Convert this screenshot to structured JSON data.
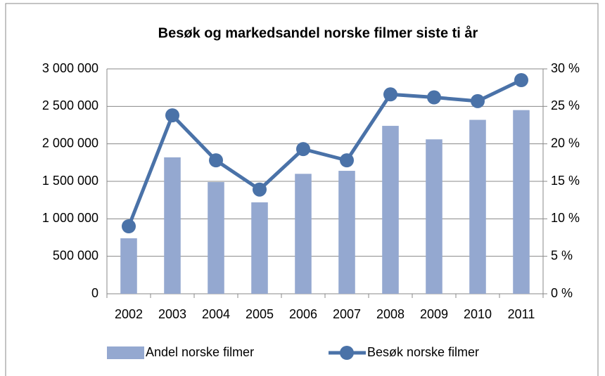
{
  "chart_data": {
    "type": "bar_line",
    "title": "Besøk og markedsandel norske filmer siste ti år",
    "categories": [
      "2002",
      "2003",
      "2004",
      "2005",
      "2006",
      "2007",
      "2008",
      "2009",
      "2010",
      "2011"
    ],
    "series": [
      {
        "name": "Andel norske filmer",
        "type": "bar",
        "axis": "y2",
        "color": "#94a8d0",
        "values": [
          7.4,
          18.2,
          14.9,
          12.2,
          16.0,
          16.4,
          22.4,
          20.6,
          23.2,
          24.5
        ]
      },
      {
        "name": "Besøk norske filmer",
        "type": "line",
        "axis": "y",
        "color": "#4a72a8",
        "values": [
          900000,
          2380000,
          1780000,
          1390000,
          1930000,
          1780000,
          2660000,
          2620000,
          2570000,
          2850000
        ]
      }
    ],
    "ylim": [
      0,
      3000000
    ],
    "yticks": [
      0,
      {
        "value": 500000,
        "label": "500 000"
      },
      {
        "value": 1000000,
        "label": "1 000 000"
      },
      {
        "value": 1500000,
        "label": "1 500 000"
      },
      {
        "value": 2000000,
        "label": "2 000 000"
      },
      {
        "value": 2500000,
        "label": "2 500 000"
      },
      {
        "value": 3000000,
        "label": "3 000 000"
      }
    ],
    "y2lim": [
      0,
      30
    ],
    "y2ticks": [
      {
        "value": 0,
        "label": "0 %"
      },
      {
        "value": 5,
        "label": "5 %"
      },
      {
        "value": 10,
        "label": "10 %"
      },
      {
        "value": 15,
        "label": "15 %"
      },
      {
        "value": 20,
        "label": "20 %"
      },
      {
        "value": 25,
        "label": "25 %"
      },
      {
        "value": 30,
        "label": "30 %"
      }
    ],
    "grid": true,
    "legend": "bottom"
  }
}
